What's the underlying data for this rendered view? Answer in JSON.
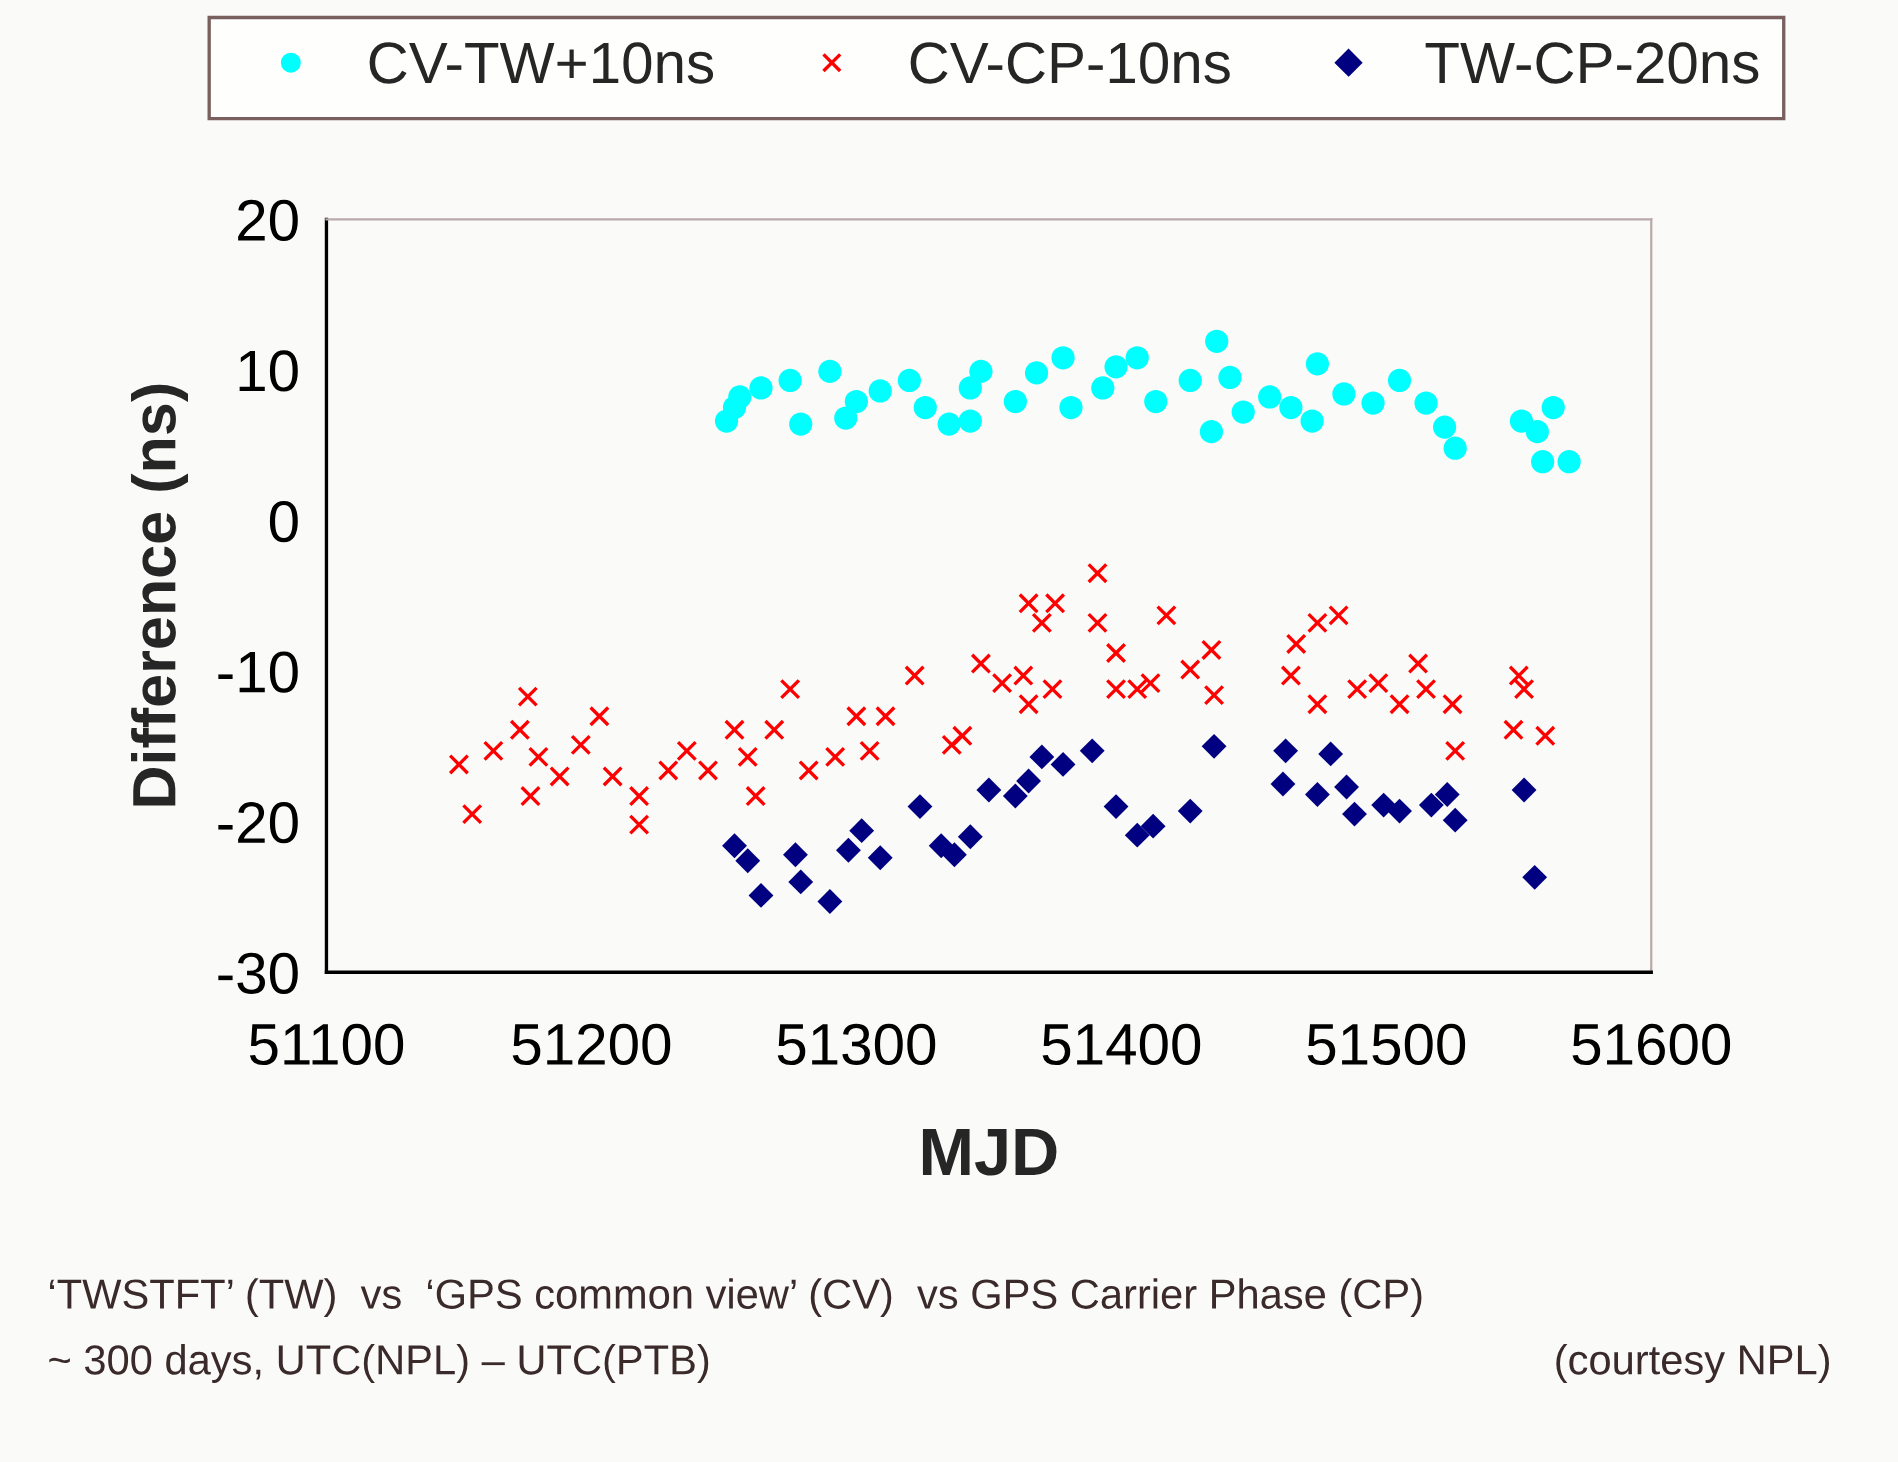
{
  "chart_data": {
    "type": "scatter",
    "xlabel": "MJD",
    "ylabel": "Difference (ns)",
    "xlim": [
      51100,
      51600
    ],
    "xticks": [
      51100,
      51200,
      51300,
      51400,
      51500,
      51600
    ],
    "ylim": [
      -30,
      20
    ],
    "yticks": [
      -30,
      -20,
      -10,
      0,
      10,
      20
    ],
    "grid": false,
    "legend": "top",
    "annotations": [
      "‘TWSTFT’ (TW)  vs  ‘GPS common view’ (CV)  vs GPS Carrier Phase (CP)",
      "~ 300 days, UTC(NPL) – UTC(PTB)",
      "(courtesy NPL)"
    ],
    "series": [
      {
        "name": "CV-TW+10ns",
        "color": "#00ffff",
        "marker": "circle",
        "x": [
          51251,
          51254,
          51256,
          51264,
          51275,
          51279,
          51290,
          51296,
          51300,
          51309,
          51320,
          51326,
          51335,
          51343,
          51347,
          51343,
          51360,
          51368,
          51378,
          51381,
          51393,
          51398,
          51406,
          51413,
          51426,
          51436,
          51441,
          51434,
          51446,
          51456,
          51464,
          51474,
          51472,
          51484,
          51495,
          51505,
          51515,
          51522,
          51526,
          51551,
          51557,
          51563,
          51559,
          51569
        ],
        "values": [
          6.6,
          7.5,
          8.2,
          8.8,
          9.3,
          6.4,
          9.9,
          6.8,
          7.9,
          8.6,
          9.3,
          7.5,
          6.4,
          8.8,
          9.9,
          6.6,
          7.9,
          9.8,
          10.8,
          7.5,
          8.8,
          10.2,
          10.8,
          7.9,
          9.3,
          11.9,
          9.5,
          5.9,
          7.2,
          8.2,
          7.5,
          10.4,
          6.6,
          8.4,
          7.8,
          9.3,
          7.8,
          6.2,
          4.8,
          6.6,
          5.9,
          7.5,
          3.9,
          3.9
        ]
      },
      {
        "name": "CV-CP-10ns",
        "color": "#ff0000",
        "marker": "cross",
        "x": [
          51150,
          51155,
          51163,
          51176,
          51173,
          51180,
          51177,
          51188,
          51196,
          51203,
          51208,
          51218,
          51218,
          51229,
          51236,
          51244,
          51254,
          51262,
          51259,
          51269,
          51275,
          51282,
          51292,
          51300,
          51305,
          51311,
          51322,
          51336,
          51340,
          51347,
          51355,
          51363,
          51365,
          51365,
          51370,
          51375,
          51374,
          51391,
          51391,
          51398,
          51398,
          51406,
          51411,
          51417,
          51426,
          51434,
          51435,
          51464,
          51466,
          51474,
          51482,
          51474,
          51489,
          51497,
          51505,
          51512,
          51515,
          51525,
          51526,
          51550,
          51552,
          51548,
          51560
        ],
        "values": [
          -16.2,
          -19.5,
          -15.3,
          -11.7,
          -13.9,
          -15.7,
          -18.3,
          -17.0,
          -14.9,
          -13.0,
          -17.0,
          -18.3,
          -20.2,
          -16.6,
          -15.3,
          -16.6,
          -13.9,
          -18.3,
          -15.7,
          -13.9,
          -11.2,
          -16.6,
          -15.7,
          -13.0,
          -15.3,
          -13.0,
          -10.3,
          -14.9,
          -14.3,
          -9.5,
          -10.8,
          -10.3,
          -12.2,
          -5.5,
          -6.8,
          -5.5,
          -11.2,
          -3.5,
          -6.8,
          -8.8,
          -11.2,
          -11.2,
          -10.8,
          -6.3,
          -9.9,
          -8.6,
          -11.6,
          -10.3,
          -8.2,
          -6.8,
          -6.3,
          -12.2,
          -11.2,
          -10.8,
          -12.2,
          -9.5,
          -11.2,
          -12.2,
          -15.3,
          -10.3,
          -11.2,
          -13.9,
          -14.3
        ]
      },
      {
        "name": "TW-CP-20ns",
        "color": "#000080",
        "marker": "diamond",
        "x": [
          51254,
          51259,
          51264,
          51277,
          51279,
          51290,
          51297,
          51302,
          51309,
          51324,
          51332,
          51337,
          51343,
          51350,
          51360,
          51365,
          51370,
          51378,
          51389,
          51398,
          51406,
          51412,
          51426,
          51435,
          51461,
          51462,
          51474,
          51479,
          51485,
          51488,
          51499,
          51505,
          51517,
          51523,
          51526,
          51552,
          51556
        ],
        "values": [
          -21.6,
          -22.6,
          -24.9,
          -22.2,
          -24.0,
          -25.3,
          -21.9,
          -20.6,
          -22.4,
          -19.0,
          -21.6,
          -22.2,
          -21.0,
          -17.9,
          -18.3,
          -17.3,
          -15.7,
          -16.2,
          -15.3,
          -19.0,
          -20.9,
          -20.3,
          -19.3,
          -15.0,
          -17.5,
          -15.3,
          -18.2,
          -15.5,
          -17.7,
          -19.5,
          -18.9,
          -19.3,
          -18.9,
          -18.2,
          -19.9,
          -17.9,
          -23.7
        ]
      }
    ]
  }
}
